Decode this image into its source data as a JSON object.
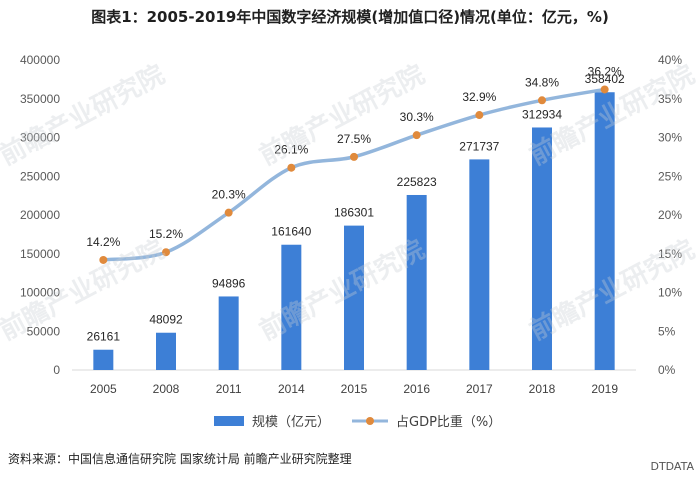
{
  "chart_data": {
    "type": "bar+line",
    "title": "图表1：2005-2019年中国数字经济规模(增加值口径)情况(单位：亿元，%)",
    "categories": [
      "2005",
      "2008",
      "2011",
      "2014",
      "2015",
      "2016",
      "2017",
      "2018",
      "2019"
    ],
    "series": [
      {
        "name": "规模（亿元）",
        "type": "bar",
        "axis": "left",
        "values": [
          26161,
          48092,
          94896,
          161640,
          186301,
          225823,
          271737,
          312934,
          358402
        ]
      },
      {
        "name": "占GDP比重（%）",
        "type": "line",
        "axis": "right",
        "values": [
          14.2,
          15.2,
          20.3,
          26.1,
          27.5,
          30.3,
          32.9,
          34.8,
          36.2
        ]
      }
    ],
    "bar_labels": [
      "26161",
      "48092",
      "94896",
      "161640",
      "186301",
      "225823",
      "271737",
      "312934",
      "358402"
    ],
    "line_labels": [
      "14.2%",
      "15.2%",
      "20.3%",
      "26.1%",
      "27.5%",
      "30.3%",
      "32.9%",
      "34.8%",
      "36.2%"
    ],
    "y_left": {
      "min": 0,
      "max": 400000,
      "ticks": [
        "0",
        "50000",
        "100000",
        "150000",
        "200000",
        "250000",
        "300000",
        "350000",
        "400000"
      ]
    },
    "y_right": {
      "min": 0,
      "max": 40,
      "ticks": [
        "0%",
        "5%",
        "10%",
        "15%",
        "20%",
        "25%",
        "30%",
        "35%",
        "40%"
      ]
    },
    "legend_position": "bottom",
    "grid": false,
    "colors": {
      "bar": "#3d7fd6",
      "line": "#93b6dc",
      "marker": "#e08a3c"
    }
  },
  "source": "资料来源：中国信息通信研究院 国家统计局 前瞻产业研究院整理",
  "footer_brand": "DTDATA",
  "watermark": "前瞻产业研究院"
}
